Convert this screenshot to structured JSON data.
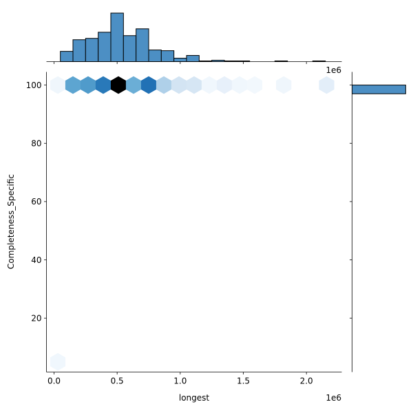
{
  "chart_data": {
    "type": "hexbin",
    "xlabel": "longest",
    "ylabel": "Completeness_Specific",
    "x_offset_label": "1e6",
    "top_offset_label": "1e6",
    "xlim": [
      -60000,
      2280000
    ],
    "ylim": [
      1.5,
      104.5
    ],
    "xticks": [
      0.0,
      0.5,
      1.0,
      1.5,
      2.0
    ],
    "xtick_labels": [
      "0.0",
      "0.5",
      "1.0",
      "1.5",
      "2.0"
    ],
    "yticks": [
      20,
      40,
      60,
      80,
      100
    ],
    "ytick_labels": [
      "20",
      "40",
      "60",
      "80",
      "100"
    ],
    "hex_color_max": "#000000",
    "hex_color_min": "#f7fbff",
    "hexbins": [
      {
        "x": 30000,
        "y": 100,
        "intensity": 0.05
      },
      {
        "x": 150000,
        "y": 100,
        "intensity": 0.55
      },
      {
        "x": 270000,
        "y": 100,
        "intensity": 0.6
      },
      {
        "x": 390000,
        "y": 100,
        "intensity": 0.78
      },
      {
        "x": 510000,
        "y": 100,
        "intensity": 1.0
      },
      {
        "x": 630000,
        "y": 100,
        "intensity": 0.5
      },
      {
        "x": 750000,
        "y": 100,
        "intensity": 0.82
      },
      {
        "x": 870000,
        "y": 100,
        "intensity": 0.35
      },
      {
        "x": 990000,
        "y": 100,
        "intensity": 0.22
      },
      {
        "x": 1110000,
        "y": 100,
        "intensity": 0.2
      },
      {
        "x": 1230000,
        "y": 100,
        "intensity": 0.04
      },
      {
        "x": 1350000,
        "y": 100,
        "intensity": 0.1
      },
      {
        "x": 1470000,
        "y": 100,
        "intensity": 0.04
      },
      {
        "x": 1590000,
        "y": 100,
        "intensity": 0.03
      },
      {
        "x": 1820000,
        "y": 100,
        "intensity": 0.05
      },
      {
        "x": 2160000,
        "y": 100,
        "intensity": 0.12
      },
      {
        "x": 30000,
        "y": 5,
        "intensity": 0.04
      }
    ],
    "top_hist": {
      "bin_edges": [
        50000,
        150000,
        250000,
        350000,
        450000,
        550000,
        650000,
        750000,
        850000,
        950000,
        1050000,
        1150000,
        1250000,
        1350000,
        1450000,
        1550000,
        1650000,
        1750000,
        1850000,
        1950000,
        2050000,
        2150000,
        2250000
      ],
      "counts": [
        15,
        32,
        34,
        43,
        71,
        38,
        48,
        17,
        16,
        5,
        9,
        1,
        2,
        1,
        1,
        0,
        0,
        1,
        0,
        0,
        1,
        0
      ],
      "color": "#4c8fc4",
      "edge_color": "#000000"
    },
    "right_hist": {
      "bin_range": [
        97,
        100
      ],
      "count_fraction": 0.88,
      "color": "#4c8fc4",
      "edge_color": "#000000"
    }
  }
}
